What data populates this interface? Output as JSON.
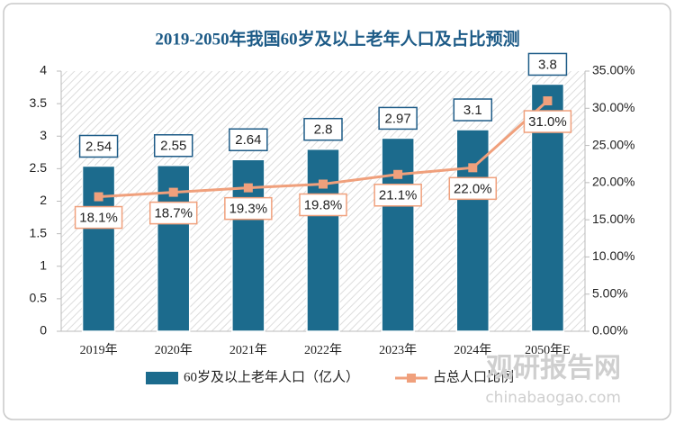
{
  "chart_data": {
    "type": "bar",
    "title": "2019-2050年我国60岁及以上老年人口及占比预测",
    "categories": [
      "2019年",
      "2020年",
      "2021年",
      "2022年",
      "2023年",
      "2024年",
      "2050年E"
    ],
    "series": [
      {
        "name": "60岁及以上老年人口（亿人）",
        "type": "bar",
        "color": "#1c6b8d",
        "values": [
          2.54,
          2.55,
          2.64,
          2.8,
          2.97,
          3.1,
          3.8
        ]
      },
      {
        "name": "占总人口比例",
        "type": "line",
        "axis": "y2",
        "color": "#f0a07c",
        "values": [
          18.1,
          18.7,
          19.3,
          19.8,
          21.1,
          22.0,
          31.0
        ],
        "value_labels": [
          "18.1%",
          "18.7%",
          "19.3%",
          "19.8%",
          "21.1%",
          "22.0%",
          "31.0%"
        ]
      }
    ],
    "ylim": [
      0,
      4
    ],
    "yticks": [
      0,
      0.5,
      1,
      1.5,
      2,
      2.5,
      3,
      3.5,
      4
    ],
    "y2lim": [
      0,
      35
    ],
    "y2ticks": [
      {
        "value": 0,
        "label": "0.00%"
      },
      {
        "value": 5,
        "label": "5.00%"
      },
      {
        "value": 10,
        "label": "10.00%"
      },
      {
        "value": 15,
        "label": "15.00%"
      },
      {
        "value": 20,
        "label": "20.00%"
      },
      {
        "value": 25,
        "label": "25.00%"
      },
      {
        "value": 30,
        "label": "30.00%"
      },
      {
        "value": 35,
        "label": "35.00%"
      }
    ],
    "legend": "bottom",
    "watermark": {
      "name": "观研报告网",
      "url": "chinabaogao.com"
    }
  }
}
